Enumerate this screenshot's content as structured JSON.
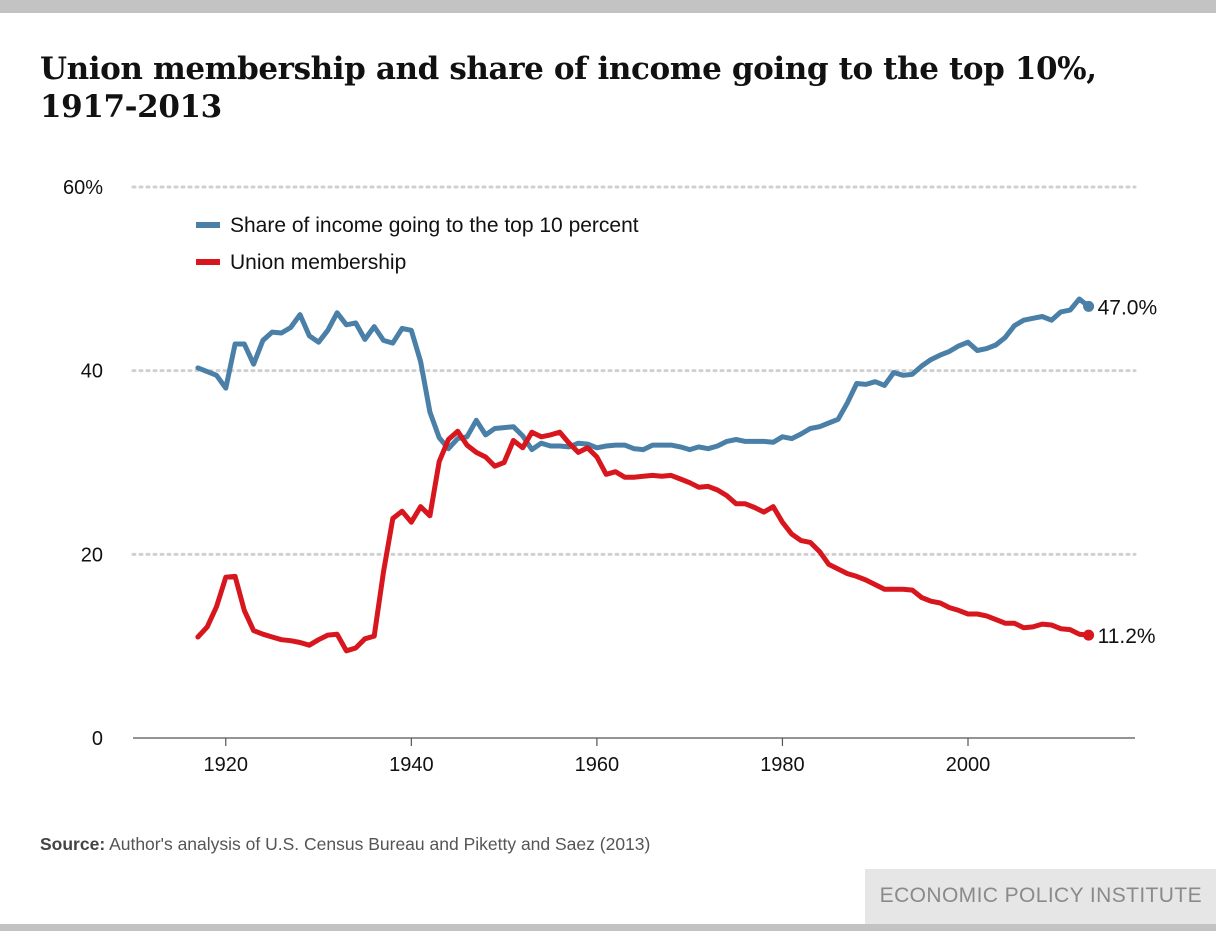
{
  "title": "Union membership and share of income going to the top 10%, 1917-2013",
  "source": {
    "label": "Source:",
    "text": "Author's analysis of U.S. Census Bureau and Piketty and Saez (2013)"
  },
  "brand": "ECONOMIC POLICY INSTITUTE",
  "chart_data": {
    "type": "line",
    "title": "Union membership and share of income going to the top 10%, 1917-2013",
    "xlabel": "",
    "ylabel": "",
    "xlim": [
      1910,
      2018
    ],
    "ylim": [
      0,
      60
    ],
    "x_ticks": [
      1920,
      1940,
      1960,
      1980,
      2000
    ],
    "y_ticks": [
      {
        "value": 0,
        "label": "0"
      },
      {
        "value": 20,
        "label": "20"
      },
      {
        "value": 40,
        "label": "40"
      },
      {
        "value": 60,
        "label": "60%"
      }
    ],
    "grid": "horizontal-dotted",
    "legend_position": "top-left",
    "series": [
      {
        "name": "Share of income going to the top 10 percent",
        "color": "#4a7fa8",
        "end_label": "47.0%",
        "points": [
          [
            1917,
            40.3
          ],
          [
            1918,
            39.9
          ],
          [
            1919,
            39.5
          ],
          [
            1920,
            38.1
          ],
          [
            1921,
            42.9
          ],
          [
            1922,
            42.9
          ],
          [
            1923,
            40.7
          ],
          [
            1924,
            43.3
          ],
          [
            1925,
            44.2
          ],
          [
            1926,
            44.1
          ],
          [
            1927,
            44.7
          ],
          [
            1928,
            46.1
          ],
          [
            1929,
            43.8
          ],
          [
            1930,
            43.1
          ],
          [
            1931,
            44.4
          ],
          [
            1932,
            46.3
          ],
          [
            1933,
            45.0
          ],
          [
            1934,
            45.2
          ],
          [
            1935,
            43.4
          ],
          [
            1936,
            44.8
          ],
          [
            1937,
            43.3
          ],
          [
            1938,
            43.0
          ],
          [
            1939,
            44.6
          ],
          [
            1940,
            44.4
          ],
          [
            1941,
            41.0
          ],
          [
            1942,
            35.5
          ],
          [
            1943,
            32.7
          ],
          [
            1944,
            31.5
          ],
          [
            1945,
            32.6
          ],
          [
            1946,
            32.8
          ],
          [
            1947,
            34.6
          ],
          [
            1948,
            33.0
          ],
          [
            1949,
            33.7
          ],
          [
            1950,
            33.8
          ],
          [
            1951,
            33.9
          ],
          [
            1952,
            32.9
          ],
          [
            1953,
            31.4
          ],
          [
            1954,
            32.1
          ],
          [
            1955,
            31.8
          ],
          [
            1956,
            31.8
          ],
          [
            1957,
            31.7
          ],
          [
            1958,
            32.1
          ],
          [
            1959,
            32.0
          ],
          [
            1960,
            31.6
          ],
          [
            1961,
            31.8
          ],
          [
            1962,
            31.9
          ],
          [
            1963,
            31.9
          ],
          [
            1964,
            31.5
          ],
          [
            1965,
            31.4
          ],
          [
            1966,
            31.9
          ],
          [
            1967,
            31.9
          ],
          [
            1968,
            31.9
          ],
          [
            1969,
            31.7
          ],
          [
            1970,
            31.4
          ],
          [
            1971,
            31.7
          ],
          [
            1972,
            31.5
          ],
          [
            1973,
            31.8
          ],
          [
            1974,
            32.3
          ],
          [
            1975,
            32.5
          ],
          [
            1976,
            32.3
          ],
          [
            1977,
            32.3
          ],
          [
            1978,
            32.3
          ],
          [
            1979,
            32.2
          ],
          [
            1980,
            32.8
          ],
          [
            1981,
            32.6
          ],
          [
            1982,
            33.1
          ],
          [
            1983,
            33.7
          ],
          [
            1984,
            33.9
          ],
          [
            1985,
            34.3
          ],
          [
            1986,
            34.7
          ],
          [
            1987,
            36.5
          ],
          [
            1988,
            38.6
          ],
          [
            1989,
            38.5
          ],
          [
            1990,
            38.8
          ],
          [
            1991,
            38.4
          ],
          [
            1992,
            39.8
          ],
          [
            1993,
            39.5
          ],
          [
            1994,
            39.6
          ],
          [
            1995,
            40.5
          ],
          [
            1996,
            41.2
          ],
          [
            1997,
            41.7
          ],
          [
            1998,
            42.1
          ],
          [
            1999,
            42.7
          ],
          [
            2000,
            43.1
          ],
          [
            2001,
            42.2
          ],
          [
            2002,
            42.4
          ],
          [
            2003,
            42.8
          ],
          [
            2004,
            43.6
          ],
          [
            2005,
            44.9
          ],
          [
            2006,
            45.5
          ],
          [
            2007,
            45.7
          ],
          [
            2008,
            45.9
          ],
          [
            2009,
            45.5
          ],
          [
            2010,
            46.4
          ],
          [
            2011,
            46.6
          ],
          [
            2012,
            47.8
          ],
          [
            2013,
            47.0
          ]
        ]
      },
      {
        "name": "Union membership",
        "color": "#d7161e",
        "end_label": "11.2%",
        "points": [
          [
            1917,
            11.0
          ],
          [
            1918,
            12.1
          ],
          [
            1919,
            14.3
          ],
          [
            1920,
            17.5
          ],
          [
            1921,
            17.6
          ],
          [
            1922,
            13.9
          ],
          [
            1923,
            11.7
          ],
          [
            1924,
            11.3
          ],
          [
            1925,
            11.0
          ],
          [
            1926,
            10.7
          ],
          [
            1927,
            10.6
          ],
          [
            1928,
            10.4
          ],
          [
            1929,
            10.1
          ],
          [
            1930,
            10.7
          ],
          [
            1931,
            11.2
          ],
          [
            1932,
            11.3
          ],
          [
            1933,
            9.5
          ],
          [
            1934,
            9.8
          ],
          [
            1935,
            10.8
          ],
          [
            1936,
            11.1
          ],
          [
            1937,
            18.1
          ],
          [
            1938,
            23.9
          ],
          [
            1939,
            24.7
          ],
          [
            1940,
            23.5
          ],
          [
            1941,
            25.2
          ],
          [
            1942,
            24.2
          ],
          [
            1943,
            30.1
          ],
          [
            1944,
            32.5
          ],
          [
            1945,
            33.4
          ],
          [
            1946,
            31.9
          ],
          [
            1947,
            31.1
          ],
          [
            1948,
            30.6
          ],
          [
            1949,
            29.6
          ],
          [
            1950,
            30.0
          ],
          [
            1951,
            32.4
          ],
          [
            1952,
            31.6
          ],
          [
            1953,
            33.3
          ],
          [
            1954,
            32.8
          ],
          [
            1955,
            33.0
          ],
          [
            1956,
            33.3
          ],
          [
            1957,
            32.1
          ],
          [
            1958,
            31.1
          ],
          [
            1959,
            31.6
          ],
          [
            1960,
            30.6
          ],
          [
            1961,
            28.7
          ],
          [
            1962,
            29.0
          ],
          [
            1963,
            28.4
          ],
          [
            1964,
            28.4
          ],
          [
            1965,
            28.5
          ],
          [
            1966,
            28.6
          ],
          [
            1967,
            28.5
          ],
          [
            1968,
            28.6
          ],
          [
            1969,
            28.2
          ],
          [
            1970,
            27.8
          ],
          [
            1971,
            27.3
          ],
          [
            1972,
            27.4
          ],
          [
            1973,
            27.0
          ],
          [
            1974,
            26.4
          ],
          [
            1975,
            25.5
          ],
          [
            1976,
            25.5
          ],
          [
            1977,
            25.1
          ],
          [
            1978,
            24.6
          ],
          [
            1979,
            25.2
          ],
          [
            1980,
            23.5
          ],
          [
            1981,
            22.2
          ],
          [
            1982,
            21.5
          ],
          [
            1983,
            21.3
          ],
          [
            1984,
            20.3
          ],
          [
            1985,
            18.9
          ],
          [
            1986,
            18.4
          ],
          [
            1987,
            17.9
          ],
          [
            1988,
            17.6
          ],
          [
            1989,
            17.2
          ],
          [
            1990,
            16.7
          ],
          [
            1991,
            16.2
          ],
          [
            1992,
            16.2
          ],
          [
            1993,
            16.2
          ],
          [
            1994,
            16.1
          ],
          [
            1995,
            15.3
          ],
          [
            1996,
            14.9
          ],
          [
            1997,
            14.7
          ],
          [
            1998,
            14.2
          ],
          [
            1999,
            13.9
          ],
          [
            2000,
            13.5
          ],
          [
            2001,
            13.5
          ],
          [
            2002,
            13.3
          ],
          [
            2003,
            12.9
          ],
          [
            2004,
            12.5
          ],
          [
            2005,
            12.5
          ],
          [
            2006,
            12.0
          ],
          [
            2007,
            12.1
          ],
          [
            2008,
            12.4
          ],
          [
            2009,
            12.3
          ],
          [
            2010,
            11.9
          ],
          [
            2011,
            11.8
          ],
          [
            2012,
            11.3
          ],
          [
            2013,
            11.2
          ]
        ]
      }
    ]
  }
}
